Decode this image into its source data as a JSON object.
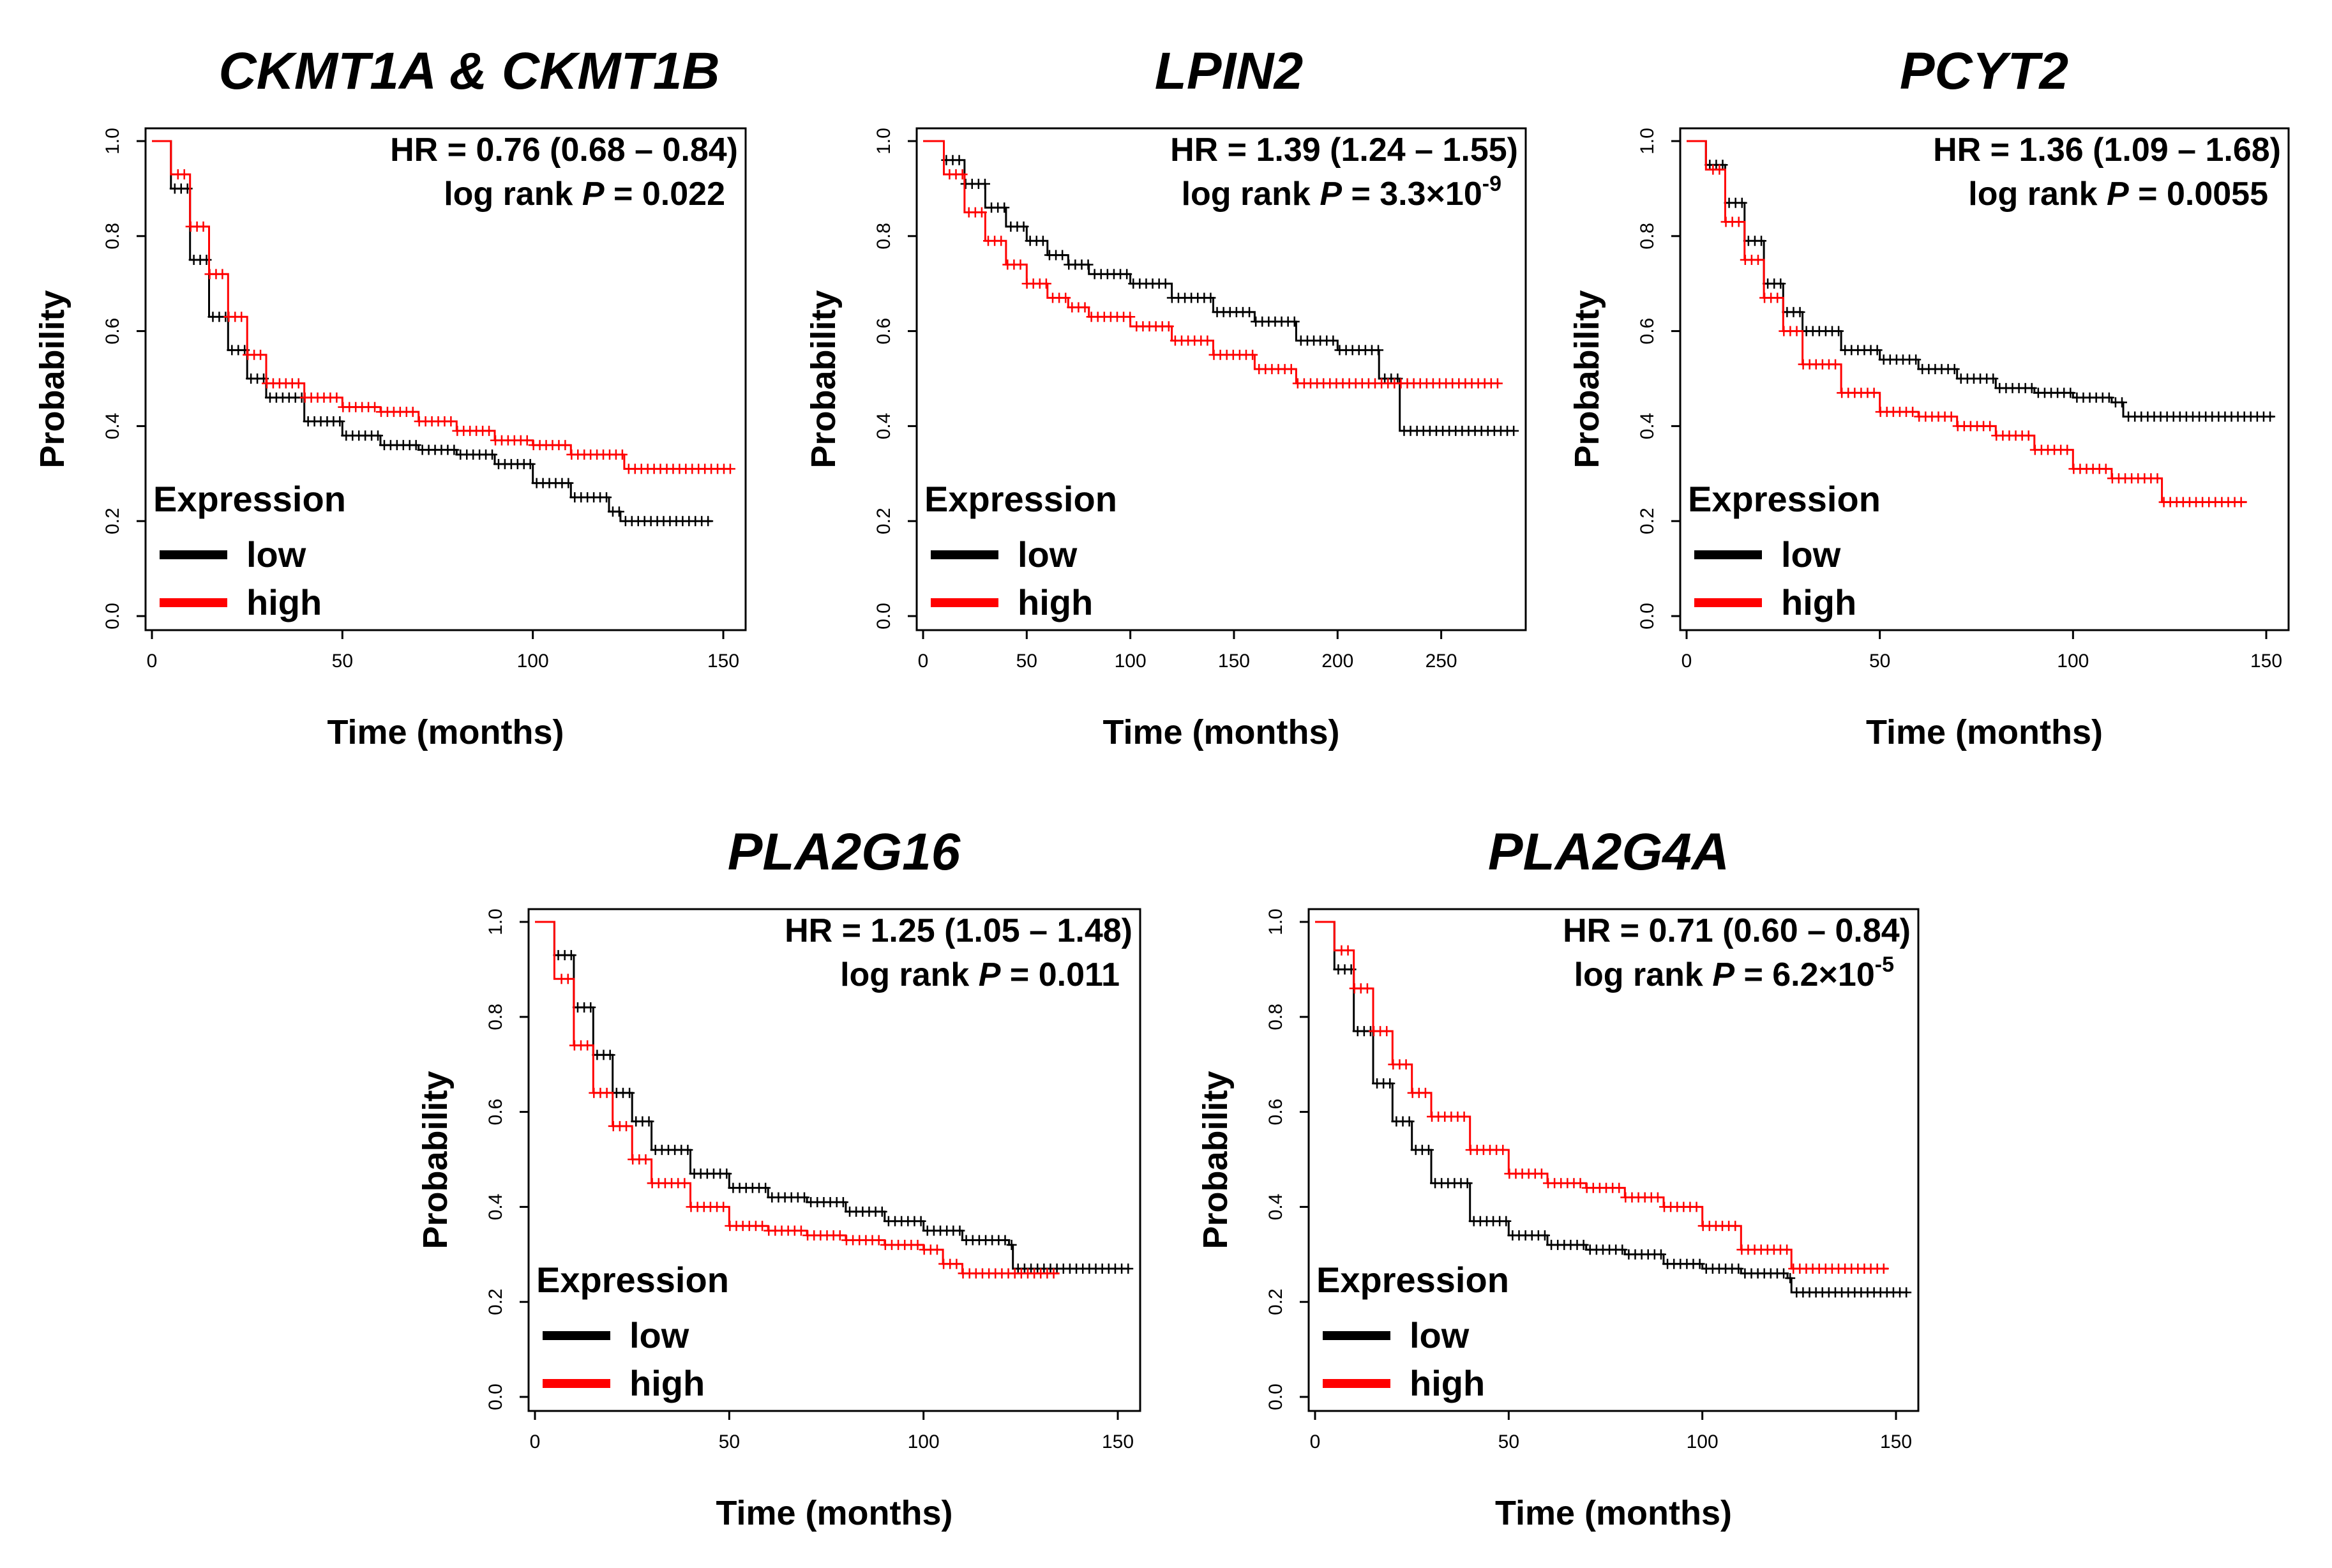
{
  "chart_data": [
    {
      "type": "line",
      "title": "CKMT1A & CKMT1B",
      "hr_text": "HR = 0.76 (0.68 – 0.84)",
      "p_prefix": "log rank ",
      "p_italic": "P",
      "p_value": " = 0.022",
      "p_exponent": "",
      "xlabel": "Time (months)",
      "ylabel": "Probability",
      "xlim": [
        0,
        150
      ],
      "ylim": [
        0,
        1
      ],
      "xticks": [
        "0",
        "50",
        "100",
        "150"
      ],
      "yticks": [
        "0.0",
        "0.2",
        "0.4",
        "0.6",
        "0.8",
        "1.0"
      ],
      "legend": {
        "title": "Expression",
        "labels": [
          "low",
          "high"
        ]
      },
      "series": [
        {
          "name": "low",
          "color": "#000000",
          "points": [
            [
              0,
              1.0
            ],
            [
              5,
              0.9
            ],
            [
              10,
              0.75
            ],
            [
              15,
              0.63
            ],
            [
              20,
              0.56
            ],
            [
              25,
              0.5
            ],
            [
              30,
              0.46
            ],
            [
              40,
              0.41
            ],
            [
              50,
              0.38
            ],
            [
              60,
              0.36
            ],
            [
              70,
              0.35
            ],
            [
              80,
              0.34
            ],
            [
              90,
              0.32
            ],
            [
              100,
              0.28
            ],
            [
              110,
              0.25
            ],
            [
              120,
              0.22
            ],
            [
              123,
              0.2
            ],
            [
              147,
              0.2
            ]
          ]
        },
        {
          "name": "high",
          "color": "#ff0000",
          "points": [
            [
              0,
              1.0
            ],
            [
              5,
              0.93
            ],
            [
              10,
              0.82
            ],
            [
              15,
              0.72
            ],
            [
              20,
              0.63
            ],
            [
              25,
              0.55
            ],
            [
              30,
              0.49
            ],
            [
              40,
              0.46
            ],
            [
              50,
              0.44
            ],
            [
              60,
              0.43
            ],
            [
              70,
              0.41
            ],
            [
              80,
              0.39
            ],
            [
              90,
              0.37
            ],
            [
              100,
              0.36
            ],
            [
              110,
              0.34
            ],
            [
              123,
              0.34
            ],
            [
              124,
              0.31
            ],
            [
              152,
              0.31
            ]
          ]
        }
      ]
    },
    {
      "type": "line",
      "title": "LPIN2",
      "hr_text": "HR = 1.39 (1.24 – 1.55)",
      "p_prefix": "log rank ",
      "p_italic": "P",
      "p_value": " = 3.3×10",
      "p_exponent": "-9",
      "xlabel": "Time (months)",
      "ylabel": "Probability",
      "xlim": [
        0,
        280
      ],
      "ylim": [
        0,
        1
      ],
      "xticks": [
        "0",
        "50",
        "100",
        "150",
        "200",
        "250"
      ],
      "yticks": [
        "0.0",
        "0.2",
        "0.4",
        "0.6",
        "0.8",
        "1.0"
      ],
      "legend": {
        "title": "Expression",
        "labels": [
          "low",
          "high"
        ]
      },
      "series": [
        {
          "name": "low",
          "color": "#000000",
          "points": [
            [
              0,
              1.0
            ],
            [
              10,
              0.96
            ],
            [
              20,
              0.91
            ],
            [
              30,
              0.86
            ],
            [
              40,
              0.82
            ],
            [
              50,
              0.79
            ],
            [
              60,
              0.76
            ],
            [
              70,
              0.74
            ],
            [
              80,
              0.72
            ],
            [
              100,
              0.7
            ],
            [
              120,
              0.67
            ],
            [
              140,
              0.64
            ],
            [
              160,
              0.62
            ],
            [
              180,
              0.58
            ],
            [
              200,
              0.56
            ],
            [
              218,
              0.56
            ],
            [
              220,
              0.5
            ],
            [
              228,
              0.5
            ],
            [
              230,
              0.39
            ],
            [
              285,
              0.39
            ]
          ]
        },
        {
          "name": "high",
          "color": "#ff0000",
          "points": [
            [
              0,
              1.0
            ],
            [
              10,
              0.93
            ],
            [
              20,
              0.85
            ],
            [
              30,
              0.79
            ],
            [
              40,
              0.74
            ],
            [
              50,
              0.7
            ],
            [
              60,
              0.67
            ],
            [
              70,
              0.65
            ],
            [
              80,
              0.63
            ],
            [
              100,
              0.61
            ],
            [
              120,
              0.58
            ],
            [
              140,
              0.55
            ],
            [
              160,
              0.52
            ],
            [
              180,
              0.49
            ],
            [
              200,
              0.49
            ],
            [
              278,
              0.49
            ]
          ]
        }
      ]
    },
    {
      "type": "line",
      "title": "PCYT2",
      "hr_text": "HR = 1.36 (1.09 – 1.68)",
      "p_prefix": "log rank ",
      "p_italic": "P",
      "p_value": " = 0.0055",
      "p_exponent": "",
      "xlabel": "Time (months)",
      "ylabel": "Probability",
      "xlim": [
        0,
        150
      ],
      "ylim": [
        0,
        1
      ],
      "xticks": [
        "0",
        "50",
        "100",
        "150"
      ],
      "yticks": [
        "0.0",
        "0.2",
        "0.4",
        "0.6",
        "0.8",
        "1.0"
      ],
      "legend": {
        "title": "Expression",
        "labels": [
          "low",
          "high"
        ]
      },
      "series": [
        {
          "name": "low",
          "color": "#000000",
          "points": [
            [
              0,
              1.0
            ],
            [
              5,
              0.95
            ],
            [
              10,
              0.87
            ],
            [
              15,
              0.79
            ],
            [
              20,
              0.7
            ],
            [
              25,
              0.64
            ],
            [
              30,
              0.6
            ],
            [
              40,
              0.56
            ],
            [
              50,
              0.54
            ],
            [
              60,
              0.52
            ],
            [
              70,
              0.5
            ],
            [
              80,
              0.48
            ],
            [
              90,
              0.47
            ],
            [
              100,
              0.46
            ],
            [
              110,
              0.45
            ],
            [
              113,
              0.42
            ],
            [
              152,
              0.42
            ]
          ]
        },
        {
          "name": "high",
          "color": "#ff0000",
          "points": [
            [
              0,
              1.0
            ],
            [
              5,
              0.94
            ],
            [
              10,
              0.83
            ],
            [
              15,
              0.75
            ],
            [
              20,
              0.67
            ],
            [
              25,
              0.6
            ],
            [
              30,
              0.53
            ],
            [
              40,
              0.47
            ],
            [
              50,
              0.43
            ],
            [
              60,
              0.42
            ],
            [
              70,
              0.4
            ],
            [
              80,
              0.38
            ],
            [
              90,
              0.35
            ],
            [
              100,
              0.31
            ],
            [
              110,
              0.29
            ],
            [
              122,
              0.29
            ],
            [
              123,
              0.24
            ],
            [
              145,
              0.24
            ]
          ]
        }
      ]
    },
    {
      "type": "line",
      "title": "PLA2G16",
      "hr_text": "HR = 1.25 (1.05 – 1.48)",
      "p_prefix": "log rank ",
      "p_italic": "P",
      "p_value": " = 0.011",
      "p_exponent": "",
      "xlabel": "Time (months)",
      "ylabel": "Probability",
      "xlim": [
        0,
        150
      ],
      "ylim": [
        0,
        1
      ],
      "xticks": [
        "0",
        "50",
        "100",
        "150"
      ],
      "yticks": [
        "0.0",
        "0.2",
        "0.4",
        "0.6",
        "0.8",
        "1.0"
      ],
      "legend": {
        "title": "Expression",
        "labels": [
          "low",
          "high"
        ]
      },
      "series": [
        {
          "name": "low",
          "color": "#000000",
          "points": [
            [
              0,
              1.0
            ],
            [
              5,
              0.93
            ],
            [
              10,
              0.82
            ],
            [
              15,
              0.72
            ],
            [
              20,
              0.64
            ],
            [
              25,
              0.58
            ],
            [
              30,
              0.52
            ],
            [
              40,
              0.47
            ],
            [
              50,
              0.44
            ],
            [
              60,
              0.42
            ],
            [
              70,
              0.41
            ],
            [
              80,
              0.39
            ],
            [
              90,
              0.37
            ],
            [
              100,
              0.35
            ],
            [
              110,
              0.33
            ],
            [
              122,
              0.32
            ],
            [
              123,
              0.27
            ],
            [
              153,
              0.27
            ]
          ]
        },
        {
          "name": "high",
          "color": "#ff0000",
          "points": [
            [
              0,
              1.0
            ],
            [
              5,
              0.88
            ],
            [
              10,
              0.74
            ],
            [
              15,
              0.64
            ],
            [
              20,
              0.57
            ],
            [
              25,
              0.5
            ],
            [
              30,
              0.45
            ],
            [
              40,
              0.4
            ],
            [
              50,
              0.36
            ],
            [
              60,
              0.35
            ],
            [
              70,
              0.34
            ],
            [
              80,
              0.33
            ],
            [
              90,
              0.32
            ],
            [
              100,
              0.31
            ],
            [
              105,
              0.28
            ],
            [
              110,
              0.26
            ],
            [
              135,
              0.26
            ]
          ]
        }
      ]
    },
    {
      "type": "line",
      "title": "PLA2G4A",
      "hr_text": "HR = 0.71 (0.60 – 0.84)",
      "p_prefix": "log rank ",
      "p_italic": "P",
      "p_value": " = 6.2×10",
      "p_exponent": "-5",
      "xlabel": "Time (months)",
      "ylabel": "Probability",
      "xlim": [
        0,
        150
      ],
      "ylim": [
        0,
        1
      ],
      "xticks": [
        "0",
        "50",
        "100",
        "150"
      ],
      "yticks": [
        "0.0",
        "0.2",
        "0.4",
        "0.6",
        "0.8",
        "1.0"
      ],
      "legend": {
        "title": "Expression",
        "labels": [
          "low",
          "high"
        ]
      },
      "series": [
        {
          "name": "low",
          "color": "#000000",
          "points": [
            [
              0,
              1.0
            ],
            [
              5,
              0.9
            ],
            [
              10,
              0.77
            ],
            [
              15,
              0.66
            ],
            [
              20,
              0.58
            ],
            [
              25,
              0.52
            ],
            [
              30,
              0.45
            ],
            [
              40,
              0.37
            ],
            [
              50,
              0.34
            ],
            [
              60,
              0.32
            ],
            [
              70,
              0.31
            ],
            [
              80,
              0.3
            ],
            [
              90,
              0.28
            ],
            [
              100,
              0.27
            ],
            [
              110,
              0.26
            ],
            [
              122,
              0.25
            ],
            [
              123,
              0.22
            ],
            [
              153,
              0.22
            ]
          ]
        },
        {
          "name": "high",
          "color": "#ff0000",
          "points": [
            [
              0,
              1.0
            ],
            [
              5,
              0.94
            ],
            [
              10,
              0.86
            ],
            [
              15,
              0.77
            ],
            [
              20,
              0.7
            ],
            [
              25,
              0.64
            ],
            [
              30,
              0.59
            ],
            [
              40,
              0.52
            ],
            [
              50,
              0.47
            ],
            [
              60,
              0.45
            ],
            [
              70,
              0.44
            ],
            [
              80,
              0.42
            ],
            [
              90,
              0.4
            ],
            [
              100,
              0.36
            ],
            [
              110,
              0.31
            ],
            [
              123,
              0.27
            ],
            [
              148,
              0.27
            ]
          ]
        }
      ]
    }
  ]
}
